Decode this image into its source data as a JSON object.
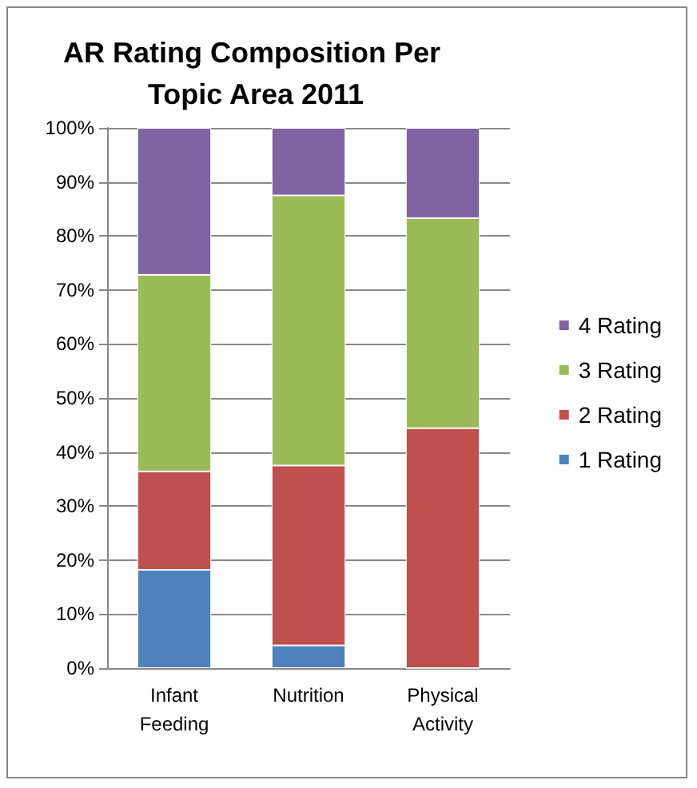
{
  "chart_data": {
    "type": "bar",
    "title": "AR Rating Composition Per Topic Area 2011",
    "categories": [
      "Infant Feeding",
      "Nutrition",
      "Physical Activity"
    ],
    "stacked": true,
    "series": [
      {
        "name": "1 Rating",
        "color": "#4f81bd",
        "values": [
          18.2,
          4.2,
          0
        ]
      },
      {
        "name": "2 Rating",
        "color": "#c0504d",
        "values": [
          18.2,
          33.3,
          44.4
        ]
      },
      {
        "name": "3 Rating",
        "color": "#9bbb59",
        "values": [
          36.4,
          50,
          38.9
        ]
      },
      {
        "name": "4 Rating",
        "color": "#8064a2",
        "values": [
          27.2,
          12.5,
          16.7
        ]
      }
    ],
    "ylim": [
      0,
      100
    ],
    "yticks": [
      {
        "value": 0,
        "label": "0%"
      },
      {
        "value": 10,
        "label": "10%"
      },
      {
        "value": 20,
        "label": "20%"
      },
      {
        "value": 30,
        "label": "30%"
      },
      {
        "value": 40,
        "label": "40%"
      },
      {
        "value": 50,
        "label": "50%"
      },
      {
        "value": 60,
        "label": "60%"
      },
      {
        "value": 70,
        "label": "70%"
      },
      {
        "value": 80,
        "label": "80%"
      },
      {
        "value": 90,
        "label": "90%"
      },
      {
        "value": 100,
        "label": "100%"
      }
    ],
    "grid": "y",
    "legend": "right"
  }
}
